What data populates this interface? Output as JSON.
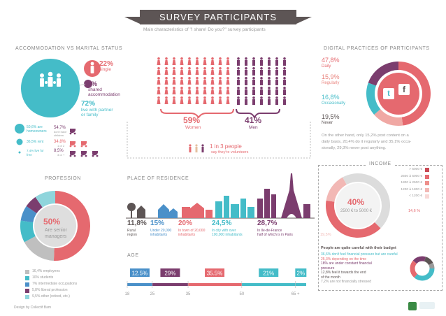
{
  "header": {
    "title": "SURVEY PARTICIPANTS",
    "subtitle": "Main characteristics of \"I share! Do you?\" survey participants"
  },
  "accommodation": {
    "section_title": "ACCOMMODATION vs MARITAL STATUS",
    "single_pct": "22%",
    "single_label": "single",
    "shared_pct": "6%",
    "shared_label_1": "shared",
    "shared_label_2": "accommodation",
    "partner_pct": "72%",
    "partner_label_1": "live with partner",
    "partner_label_2": "or family",
    "homeowners_pct": "50,6% are",
    "homeowners_label": "homeowners",
    "rent_text": "36,5% rent",
    "free_text_1": "7,4% live for",
    "free_text_2": "free",
    "no_children_pct": "54,7%",
    "no_children_label_1": "don't have",
    "no_children_label_2": "children",
    "two_pct": "34,8%",
    "two_label": "1 or 2",
    "three_pct": "8,5%",
    "three_label": "3 or +"
  },
  "gender": {
    "women_pct": "59%",
    "women_label": "Women",
    "men_pct": "41%",
    "men_label": "Men",
    "volunteer_text": "1 in 3 people",
    "volunteer_sub": "say they're volunteers"
  },
  "digital": {
    "section_title": "DIGITAL PRACTICES OF PARTICIPANTS",
    "items": [
      {
        "pct": "47,8%",
        "label": "Daily"
      },
      {
        "pct": "15,9%",
        "label": "Regularly"
      },
      {
        "pct": "16,8%",
        "label": "Occasionally"
      },
      {
        "pct": "19,5%",
        "label": "Never"
      }
    ],
    "note_1": "On the other hand, only 15,2% post content on a",
    "note_2": "daily basis, 20,4% do it regularly and 35,1% occa-",
    "note_3": "sionally, 29,3% never post anything."
  },
  "profession": {
    "section_title": "PROFESSION",
    "center_pct": "50%",
    "center_label_1": "Are senior",
    "center_label_2": "managers",
    "legend": [
      "16,4% employees",
      "10% students",
      "7% intermediate occupations",
      "5,8% liberal profession",
      "9,5% other (retired, etc.)"
    ]
  },
  "residence": {
    "section_title": "PLACE OF RESIDENCE",
    "items": [
      {
        "pct": "11,8%",
        "l1": "Rural",
        "l2": "region"
      },
      {
        "pct": "15%",
        "l1": "Under 20,000",
        "l2": "inhabitants"
      },
      {
        "pct": "20%",
        "l1": "In town of 20,000",
        "l2": "inhabitants"
      },
      {
        "pct": "24,5%",
        "l1": "In city with over",
        "l2": "100,000 inhabitants"
      },
      {
        "pct": "28,7%",
        "l1": "In Ile-de-France",
        "l2": "half of which is in Paris"
      }
    ]
  },
  "income": {
    "section_title": "INCOME",
    "center_pct": "40%",
    "center_label": "2500 € to 5000 €",
    "legend": [
      "> 5000 €",
      "2500 à 5000 €",
      "1800 à 2500 €",
      "1200 à 1800 €",
      "< 1200 €"
    ],
    "side_pct_right": "14,6 %",
    "side_pct_left": "19,5%",
    "budget_title": "People are quite careful with their budget",
    "budget_lines": [
      "36,6% don't feel financial pressure but are careful",
      "25,3% depending on the time",
      "18% are under constant financial",
      "pressure",
      "12,8% feel it towards the end",
      "of the month",
      "7,2% are not financially stressed"
    ]
  },
  "age": {
    "section_title": "AGE",
    "segments": [
      "12.5%",
      "29%",
      "35.5%",
      "21%",
      "2%"
    ],
    "ticks": [
      "18",
      "25",
      "35",
      "50",
      "65 +"
    ]
  },
  "credit": "Design by Collectif Bam",
  "colors": {
    "coral": "#e5696f",
    "teal": "#44bcc8",
    "purple": "#7b3d6e",
    "dark": "#5d5555",
    "blue": "#4a90c9",
    "grey": "#9a9a9a"
  },
  "chart_data": [
    {
      "type": "bar",
      "title": "AGE",
      "categories": [
        "18-25",
        "25-35",
        "35-50",
        "50-65",
        "65 +"
      ],
      "values": [
        12.5,
        29,
        35.5,
        21,
        2
      ]
    },
    {
      "type": "pie",
      "title": "DIGITAL PRACTICES OF PARTICIPANTS",
      "categories": [
        "Daily",
        "Regularly",
        "Occasionally",
        "Never"
      ],
      "values": [
        47.8,
        15.9,
        16.8,
        19.5
      ]
    },
    {
      "type": "pie",
      "title": "PROFESSION",
      "categories": [
        "senior managers",
        "employees",
        "students",
        "intermediate occupations",
        "liberal profession",
        "other (retired, etc.)"
      ],
      "values": [
        50,
        16.4,
        10,
        7,
        5.8,
        9.5
      ]
    },
    {
      "type": "bar",
      "title": "PLACE OF RESIDENCE",
      "categories": [
        "Rural region",
        "Under 20,000 inhabitants",
        "In town of 20,000 inhabitants",
        "In city with over 100,000 inhabitants",
        "In Ile-de-France"
      ],
      "values": [
        11.8,
        15,
        20,
        24.5,
        28.7
      ]
    },
    {
      "type": "pie",
      "title": "ACCOMMODATION vs MARITAL STATUS",
      "categories": [
        "single",
        "shared accommodation",
        "live with partner or family"
      ],
      "values": [
        22,
        6,
        72
      ]
    },
    {
      "type": "pie",
      "title": "GENDER",
      "categories": [
        "Women",
        "Men"
      ],
      "values": [
        59,
        41
      ]
    },
    {
      "type": "pie",
      "title": "INCOME",
      "categories": [
        "2500 € to 5000 €",
        "< 1200 €",
        "other"
      ],
      "values": [
        40,
        14.6,
        45.4
      ]
    }
  ]
}
